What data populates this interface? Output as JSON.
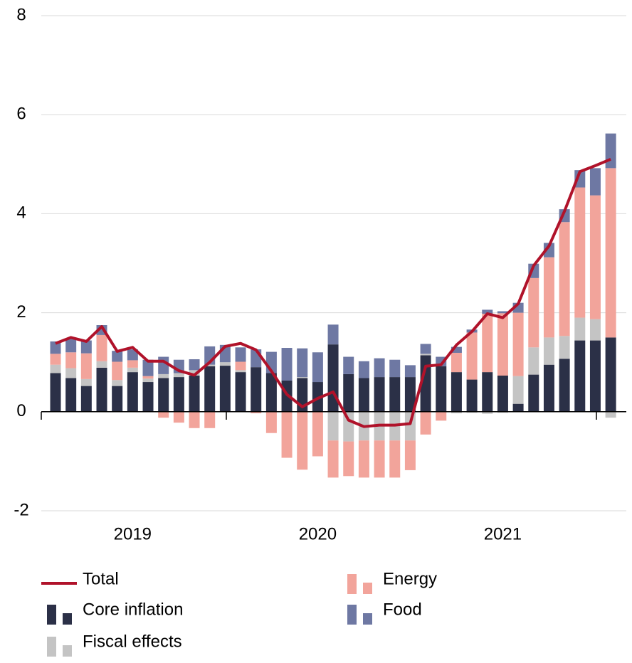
{
  "chart_data": {
    "type": "bar",
    "stacked": true,
    "categories": [
      null,
      null,
      null,
      null,
      null,
      "2019",
      null,
      null,
      null,
      null,
      null,
      null,
      null,
      null,
      null,
      null,
      null,
      "2020",
      null,
      null,
      null,
      null,
      null,
      null,
      null,
      null,
      null,
      null,
      null,
      "2021",
      null,
      null,
      null,
      null,
      null,
      null,
      null
    ],
    "ylim": [
      -2,
      8
    ],
    "yticks": [
      -2,
      0,
      2,
      4,
      6,
      8
    ],
    "grid": true,
    "series": [
      {
        "name": "Core inflation",
        "color": "#2b3047",
        "values": [
          0.78,
          0.68,
          0.52,
          0.89,
          0.52,
          0.8,
          0.6,
          0.68,
          0.7,
          0.73,
          0.92,
          0.93,
          0.8,
          0.9,
          0.78,
          0.63,
          0.68,
          0.6,
          1.36,
          0.76,
          0.68,
          0.7,
          0.7,
          0.7,
          1.14,
          0.92,
          0.8,
          0.65,
          0.8,
          0.73,
          0.16,
          0.75,
          0.95,
          1.07,
          1.44,
          1.44,
          1.5
        ]
      },
      {
        "name": "Fiscal effects",
        "color": "#c4c4c4",
        "values": [
          0.17,
          0.2,
          0.14,
          0.13,
          0.12,
          0.09,
          0.07,
          0.08,
          0.08,
          0.11,
          0.03,
          0.07,
          0.04,
          0,
          0,
          0,
          0.02,
          0,
          -0.58,
          -0.6,
          -0.58,
          -0.58,
          -0.58,
          -0.58,
          0.03,
          0,
          -0.03,
          -0.02,
          -0.04,
          -0.02,
          0.56,
          0.55,
          0.55,
          0.46,
          0.46,
          0.43,
          -0.12
        ]
      },
      {
        "name": "Energy",
        "color": "#f2a49b",
        "values": [
          0.22,
          0.32,
          0.52,
          0.53,
          0.37,
          0.15,
          0.05,
          -0.12,
          -0.22,
          -0.33,
          -0.33,
          0,
          0.17,
          -0.03,
          -0.43,
          -0.93,
          -1.17,
          -0.9,
          -0.75,
          -0.7,
          -0.75,
          -0.75,
          -0.75,
          -0.6,
          -0.46,
          -0.18,
          0.39,
          0.95,
          1.18,
          1.26,
          1.28,
          1.4,
          1.62,
          2.3,
          2.63,
          2.5,
          3.42
        ]
      },
      {
        "name": "Food",
        "color": "#6e78a3",
        "values": [
          0.25,
          0.28,
          0.26,
          0.2,
          0.22,
          0.22,
          0.33,
          0.35,
          0.27,
          0.22,
          0.37,
          0.35,
          0.29,
          0.36,
          0.43,
          0.66,
          0.58,
          0.6,
          0.4,
          0.35,
          0.34,
          0.38,
          0.35,
          0.24,
          0.2,
          0.19,
          0.12,
          0.06,
          0.08,
          0.04,
          0.2,
          0.29,
          0.29,
          0.26,
          0.35,
          0.55,
          0.7
        ]
      },
      {
        "name": "Total",
        "type": "line",
        "color": "#b0122a",
        "values": [
          1.38,
          1.5,
          1.42,
          1.72,
          1.22,
          1.3,
          1.02,
          1.02,
          0.83,
          0.74,
          1.0,
          1.32,
          1.38,
          1.25,
          0.82,
          0.35,
          0.1,
          0.27,
          0.4,
          -0.17,
          -0.3,
          -0.27,
          -0.27,
          -0.24,
          0.92,
          0.95,
          1.35,
          1.62,
          1.98,
          1.9,
          2.18,
          2.95,
          3.35,
          4.05,
          4.85,
          4.97,
          5.1
        ]
      }
    ]
  }
}
